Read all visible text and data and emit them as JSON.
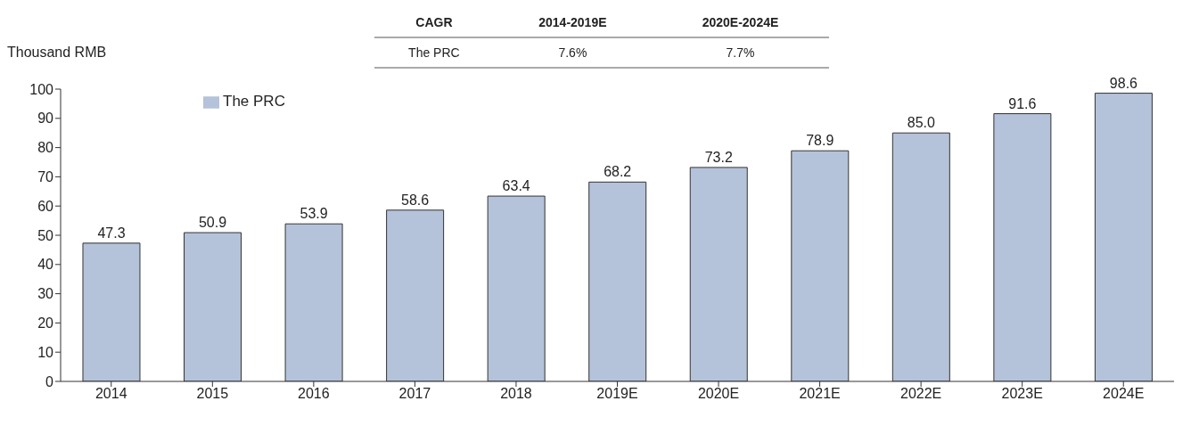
{
  "chart_data": {
    "type": "bar",
    "ylabel": "Thousand RMB",
    "categories": [
      "2014",
      "2015",
      "2016",
      "2017",
      "2018",
      "2019E",
      "2020E",
      "2021E",
      "2022E",
      "2023E",
      "2024E"
    ],
    "series": [
      {
        "name": "The PRC",
        "color": "#b4c3d9",
        "values": [
          47.3,
          50.9,
          53.9,
          58.6,
          63.4,
          68.2,
          73.2,
          78.9,
          85.0,
          91.6,
          98.6
        ],
        "value_labels": [
          "47.3",
          "50.9",
          "53.9",
          "58.6",
          "63.4",
          "68.2",
          "73.2",
          "78.9",
          "85.0",
          "91.6",
          "98.6"
        ]
      }
    ],
    "ylim": [
      0,
      100
    ],
    "yticks": [
      0,
      10,
      20,
      30,
      40,
      50,
      60,
      70,
      80,
      90,
      100
    ],
    "legend": "top left",
    "annotations": [
      "CAGR",
      "2014-2019E",
      "2020E-2024E",
      "The PRC",
      "7.6%",
      "7.7%"
    ]
  }
}
